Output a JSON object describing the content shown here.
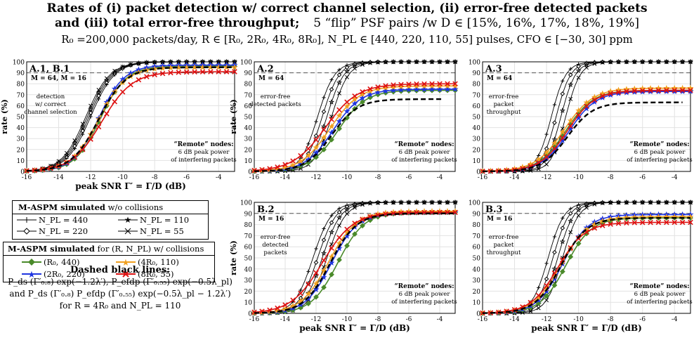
{
  "title_line1": "Rates of (i) packet detection w/ correct channel selection, (ii) error-free detected packets",
  "title_line2_a": "and (iii) total error-free throughput;",
  "title_line2_b": "5 “flip” PSF pairs /w D ∈ [15%, 16%, 17%, 18%, 19%]",
  "title_line3": "R₀ =200,000 packets/day,  R ∈ [R₀, 2R₀, 4R₀, 8R₀],  N_PL ∈ [440, 220, 110, 55] pulses,  CFO ∈ [−30, 30] ppm",
  "colors": {
    "green": "#4a8a2a",
    "blue": "#1f35e0",
    "orange": "#f0a020",
    "red": "#dd1111",
    "black": "#000000"
  },
  "chart_data": [
    {
      "id": "A1B1",
      "type": "line",
      "label": "A.1, B.1",
      "sublabel": "M = 64, M = 16",
      "annotation": [
        "detection",
        "w/ correct",
        "channel selection"
      ],
      "remote": [
        "“Remote” nodes:",
        "6 dB peak power",
        "of interfering packets"
      ],
      "xlabel": "peak SNR   Γ′ = Γ/D (dB)",
      "ylabel": "rate (%)",
      "xlim": [
        -16,
        -3
      ],
      "ylim": [
        0,
        100
      ],
      "xticks": [
        -16,
        -14,
        -12,
        -10,
        -8,
        -6,
        -4
      ],
      "yticks": [
        0,
        10,
        20,
        30,
        40,
        50,
        60,
        70,
        80,
        90,
        100
      ],
      "dashed_levels": [
        100,
        90
      ],
      "grid": true,
      "ref": [
        {
          "x0": -12.0,
          "w": 0.75
        },
        {
          "x0": -12.1,
          "w": 0.75
        },
        {
          "x0": -12.2,
          "w": 0.75
        },
        {
          "x0": -12.3,
          "w": 0.75
        }
      ],
      "coll": [
        {
          "color": "green",
          "x0": -11.4,
          "w": 0.8,
          "top": 96
        },
        {
          "color": "blue",
          "x0": -11.5,
          "w": 0.8,
          "top": 97
        },
        {
          "color": "orange",
          "x0": -11.5,
          "w": 0.85,
          "top": 95
        },
        {
          "color": "red",
          "x0": -11.3,
          "w": 0.95,
          "top": 91
        }
      ],
      "dash": {
        "x0": -11.5,
        "w": 0.85,
        "top": 95
      }
    },
    {
      "id": "A2",
      "type": "line",
      "label": "A.2",
      "sublabel": "M = 64",
      "annotation": [
        "error-free",
        "detected packets"
      ],
      "remote": [
        "“Remote” nodes:",
        "6 dB peak power",
        "of interfering packets"
      ],
      "xlabel": "",
      "ylabel": "rate (%)",
      "xlim": [
        -16,
        -3
      ],
      "ylim": [
        0,
        100
      ],
      "xticks": [
        -16,
        -14,
        -12,
        -10,
        -8,
        -6,
        -4
      ],
      "yticks": [
        0,
        10,
        20,
        30,
        40,
        50,
        60,
        70,
        80,
        90,
        100
      ],
      "dashed_levels": [
        100,
        90
      ],
      "grid": true,
      "ref": [
        {
          "x0": -11.9,
          "w": 0.55
        },
        {
          "x0": -11.6,
          "w": 0.55
        },
        {
          "x0": -11.3,
          "w": 0.55
        },
        {
          "x0": -11.0,
          "w": 0.55
        }
      ],
      "coll": [
        {
          "color": "green",
          "x0": -10.6,
          "w": 0.9,
          "top": 74
        },
        {
          "color": "blue",
          "x0": -10.9,
          "w": 0.9,
          "top": 75
        },
        {
          "color": "orange",
          "x0": -11.1,
          "w": 0.95,
          "top": 78
        },
        {
          "color": "red",
          "x0": -11.4,
          "w": 1.05,
          "top": 80
        }
      ],
      "dash": {
        "x0": -11.0,
        "w": 0.85,
        "top": 66,
        "end": -3.7
      }
    },
    {
      "id": "A3",
      "type": "line",
      "label": "A.3",
      "sublabel": "M = 64",
      "annotation": [
        "error-free",
        "packet",
        "throughput"
      ],
      "remote": [
        "“Remote” nodes:",
        "6 dB peak power",
        "of interfering packets"
      ],
      "xlabel": "",
      "ylabel": "",
      "xlim": [
        -16,
        -3
      ],
      "ylim": [
        0,
        100
      ],
      "xticks": [
        -16,
        -14,
        -12,
        -10,
        -8,
        -6,
        -4
      ],
      "yticks": [
        0,
        10,
        20,
        30,
        40,
        50,
        60,
        70,
        80,
        90,
        100
      ],
      "dashed_levels": [
        100,
        90
      ],
      "grid": true,
      "ref": [
        {
          "x0": -11.7,
          "w": 0.45
        },
        {
          "x0": -11.4,
          "w": 0.45
        },
        {
          "x0": -11.1,
          "w": 0.45
        },
        {
          "x0": -10.8,
          "w": 0.45
        }
      ],
      "coll": [
        {
          "color": "green",
          "x0": -10.8,
          "w": 0.85,
          "top": 74
        },
        {
          "color": "blue",
          "x0": -10.6,
          "w": 0.85,
          "top": 73
        },
        {
          "color": "orange",
          "x0": -10.9,
          "w": 0.9,
          "top": 76
        },
        {
          "color": "red",
          "x0": -10.7,
          "w": 0.85,
          "top": 74
        }
      ],
      "dash": {
        "x0": -10.7,
        "w": 0.8,
        "top": 63,
        "end": -3.5
      }
    },
    {
      "id": "B2",
      "type": "line",
      "label": "B.2",
      "sublabel": "M = 16",
      "annotation": [
        "error-free",
        "detected",
        "packets"
      ],
      "remote": [
        "“Remote” nodes:",
        "6 dB peak power",
        "of interfering packets"
      ],
      "xlabel": "peak SNR   Γ′ = Γ/D (dB)",
      "ylabel": "rate (%)",
      "xlim": [
        -16,
        -3
      ],
      "ylim": [
        0,
        100
      ],
      "xticks": [
        -16,
        -14,
        -12,
        -10,
        -8,
        -6,
        -4
      ],
      "yticks": [
        0,
        10,
        20,
        30,
        40,
        50,
        60,
        70,
        80,
        90,
        100
      ],
      "dashed_levels": [
        100,
        90
      ],
      "grid": true,
      "ref": [
        {
          "x0": -12.2,
          "w": 0.6
        },
        {
          "x0": -11.9,
          "w": 0.6
        },
        {
          "x0": -11.6,
          "w": 0.6
        },
        {
          "x0": -11.3,
          "w": 0.6
        }
      ],
      "coll": [
        {
          "color": "green",
          "x0": -10.6,
          "w": 0.85,
          "top": 91
        },
        {
          "color": "blue",
          "x0": -11.0,
          "w": 0.85,
          "top": 91
        },
        {
          "color": "orange",
          "x0": -11.2,
          "w": 0.9,
          "top": 92
        },
        {
          "color": "red",
          "x0": -11.6,
          "w": 1.0,
          "top": 91
        }
      ],
      "dash": {
        "x0": -11.1,
        "w": 0.85,
        "top": 90
      }
    },
    {
      "id": "B3",
      "type": "line",
      "label": "B.3",
      "sublabel": "M = 16",
      "annotation": [
        "error-free",
        "packet",
        "throughput"
      ],
      "remote": [
        "“Remote” nodes:",
        "6 dB peak power",
        "of interfering packets"
      ],
      "xlabel": "peak SNR   Γ′ = Γ/D (dB)",
      "ylabel": "",
      "xlim": [
        -16,
        -3
      ],
      "ylim": [
        0,
        100
      ],
      "xticks": [
        -16,
        -14,
        -12,
        -10,
        -8,
        -6,
        -4
      ],
      "yticks": [
        0,
        10,
        20,
        30,
        40,
        50,
        60,
        70,
        80,
        90,
        100
      ],
      "dashed_levels": [
        100,
        90
      ],
      "grid": true,
      "ref": [
        {
          "x0": -11.9,
          "w": 0.5
        },
        {
          "x0": -11.6,
          "w": 0.5
        },
        {
          "x0": -11.3,
          "w": 0.5
        },
        {
          "x0": -11.0,
          "w": 0.5
        }
      ],
      "coll": [
        {
          "color": "green",
          "x0": -10.8,
          "w": 0.8,
          "top": 86
        },
        {
          "color": "blue",
          "x0": -11.0,
          "w": 0.8,
          "top": 89
        },
        {
          "color": "orange",
          "x0": -11.1,
          "w": 0.85,
          "top": 87
        },
        {
          "color": "red",
          "x0": -11.3,
          "w": 0.85,
          "top": 82
        }
      ],
      "dash": {
        "x0": -11.1,
        "w": 0.8,
        "top": 86
      }
    }
  ],
  "legend1": {
    "title_bold": "M-ASPM simulated",
    "title_rest": " w/o collisions",
    "items": [
      "N_PL = 440",
      "N_PL = 110",
      "N_PL = 220",
      "N_PL = 55"
    ],
    "markers": [
      "plus-icon",
      "star-icon",
      "diamond-icon",
      "cross-icon"
    ]
  },
  "legend2": {
    "title_bold": "M-ASPM simulated",
    "title_rest": " for (R, N_PL) w/ collisions",
    "items": [
      {
        "label": "(R₀, 440)",
        "color": "green",
        "marker": "diamond-icon"
      },
      {
        "label": "(4R₀, 110)",
        "color": "orange",
        "marker": "star-icon"
      },
      {
        "label": "(2R₀, 220)",
        "color": "blue",
        "marker": "star-icon"
      },
      {
        "label": "(8R₀, 55)",
        "color": "red",
        "marker": "cross-icon"
      }
    ]
  },
  "dashed_note": {
    "heading": "Dashed black lines:",
    "line1": "P_ds (Γ′₀.₈) exp(−1.2λ′),    P_efdp (Γ′₀.₅₅) exp(−0.5λ_pl)",
    "line2": "and  P_ds (Γ′₀.₈) P_efdp (Γ′₀.₅₅) exp(−0.5λ_pl − 1.2λ′)",
    "line3": "for R = 4R₀ and N_PL = 110"
  }
}
